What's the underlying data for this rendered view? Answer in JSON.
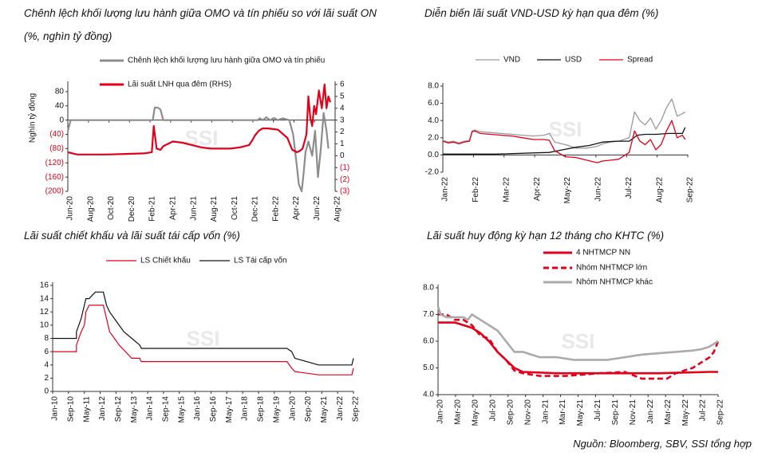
{
  "source": "Nguồn:  Bloomberg, SBV, SSI tổng hợp",
  "watermark": "SSI",
  "chart_data": [
    {
      "id": "c1",
      "type": "line",
      "title": "Chênh lệch khối lượng lưu hành giữa OMO và tín phiếu so với lãi suất ON",
      "subtitle": "(%, nghìn tỷ đồng)",
      "ylabel": "Nghìn tỷ đồng",
      "ylim": [
        -200,
        100
      ],
      "y2lim": [
        -3,
        6
      ],
      "y_ticks": [
        "80",
        "40",
        "0",
        "(40)",
        "(80)",
        "(120)",
        "(160)",
        "(200)"
      ],
      "y_tick_values": [
        80,
        40,
        0,
        -40,
        -80,
        -120,
        -160,
        -200
      ],
      "y2_ticks": [
        "6",
        "5",
        "4",
        "3",
        "2",
        "1",
        "0",
        "(1)",
        "(2)",
        "(3)"
      ],
      "y2_tick_values": [
        6,
        5,
        4,
        3,
        2,
        1,
        0,
        -1,
        -2,
        -3
      ],
      "x_ticks": [
        "Jun-20",
        "Aug-20",
        "Oct-20",
        "Dec-20",
        "Feb-21",
        "Apr-21",
        "Jun-21",
        "Aug-21",
        "Oct-21",
        "Dec-21",
        "Feb-22",
        "Apr-22",
        "Jun-22",
        "Aug-22"
      ],
      "xlim": [
        0,
        28
      ],
      "legend": [
        "Chênh lệch khối lượng lưu hành giữa OMO và tín phiếu",
        "Lãi suất LNH qua đêm (RHS)"
      ],
      "colors": [
        "#8c8c8c",
        "#e2001a"
      ],
      "series": [
        {
          "name": "Chênh lệch khối lượng lưu hành giữa OMO và tín phiếu",
          "axis": "left",
          "x": [
            0,
            0.3,
            0.6,
            3,
            6,
            8.9,
            9.1,
            9.4,
            9.7,
            10,
            12,
            14,
            18,
            19.9,
            20.1,
            20.4,
            20.8,
            21.2,
            21.6,
            22,
            22.5,
            23.2,
            23.6,
            24,
            24.2,
            24.5,
            24.7,
            24.9,
            25.2,
            25.6,
            25.9,
            26.2,
            26.5,
            26.8,
            27.1,
            27.3
          ],
          "y": [
            -30,
            0,
            0,
            0,
            0,
            0,
            35,
            35,
            30,
            0,
            0,
            0,
            0,
            0,
            5,
            0,
            8,
            0,
            6,
            0,
            5,
            0,
            -40,
            -130,
            -180,
            -200,
            -150,
            -90,
            -60,
            -100,
            -30,
            -160,
            -80,
            20,
            -30,
            -80
          ]
        },
        {
          "name": "Lãi suất LNH qua đêm (RHS)",
          "axis": "right",
          "x": [
            0,
            0.5,
            1,
            2,
            4,
            6,
            8,
            8.8,
            9,
            9.3,
            9.7,
            10,
            11,
            12,
            13,
            14,
            15,
            16,
            17,
            18,
            19,
            19.4,
            19.6,
            20,
            20.4,
            21,
            22,
            23,
            23.5,
            24,
            24.3,
            24.6,
            25,
            25.2,
            25.4,
            25.6,
            25.8,
            26,
            26.3,
            26.6,
            26.9,
            27.1,
            27.3,
            27.5
          ],
          "y": [
            0.3,
            0.2,
            0.1,
            0.1,
            0.1,
            0.15,
            0.2,
            0.3,
            2.5,
            0.6,
            0.5,
            0.8,
            1.2,
            1.1,
            0.9,
            0.7,
            0.6,
            0.6,
            0.6,
            0.7,
            0.9,
            1.4,
            1.7,
            2.1,
            2.3,
            2.3,
            2.2,
            1.5,
            0.5,
            0.3,
            0.4,
            0.6,
            1.8,
            5.0,
            3.2,
            2.5,
            4.2,
            3.5,
            5.5,
            4.0,
            6.0,
            4.0,
            5.0,
            4.5
          ]
        }
      ]
    },
    {
      "id": "c2",
      "type": "line",
      "title": "Diễn biến lãi suất VND-USD kỳ hạn qua đêm (%)",
      "ylim": [
        -2,
        8
      ],
      "y_ticks": [
        "8.0",
        "6.0",
        "4.0",
        "2.0",
        "0.0",
        "-2.0"
      ],
      "y_tick_values": [
        8,
        6,
        4,
        2,
        0,
        -2
      ],
      "x_ticks": [
        "Jan-22",
        "Feb-22",
        "Mar-22",
        "Apr-22",
        "May-22",
        "Jun-22",
        "Jul-22",
        "Aug-22",
        "Sep-22"
      ],
      "xlim": [
        0,
        9.2
      ],
      "legend": [
        "VND",
        "USD",
        "Spread"
      ],
      "colors": [
        "#999999",
        "#111111",
        "#e2001a"
      ],
      "series": [
        {
          "name": "VND",
          "x": [
            0,
            0.2,
            0.4,
            0.6,
            0.8,
            1,
            1.1,
            1.2,
            1.4,
            1.8,
            2.2,
            2.6,
            3,
            3.4,
            3.8,
            4,
            4.2,
            4.6,
            5,
            5.4,
            5.8,
            6,
            6.3,
            6.6,
            7,
            7.2,
            7.4,
            7.6,
            7.8,
            8,
            8.2,
            8.4,
            8.6,
            8.8,
            9,
            9.1
          ],
          "y": [
            1.7,
            1.5,
            1.6,
            1.4,
            1.6,
            1.7,
            2.8,
            2.9,
            2.7,
            2.6,
            2.5,
            2.4,
            2.3,
            2.2,
            2.3,
            2.5,
            1.5,
            1.2,
            0.8,
            0.8,
            1.0,
            1.3,
            1.5,
            1.6,
            2.0,
            5.0,
            4.0,
            3.5,
            4.3,
            3.0,
            4.0,
            5.5,
            6.5,
            4.5,
            4.8,
            5.0
          ]
        },
        {
          "name": "USD",
          "x": [
            0,
            2,
            4,
            4.5,
            5,
            5.5,
            6,
            6.5,
            7,
            7.3,
            7.6,
            8,
            8.5,
            9,
            9.1
          ],
          "y": [
            0.1,
            0.1,
            0.3,
            0.6,
            0.9,
            1.1,
            1.5,
            1.6,
            1.6,
            2.3,
            2.4,
            2.4,
            2.5,
            2.5,
            3.2
          ]
        },
        {
          "name": "Spread",
          "x": [
            0,
            0.2,
            0.4,
            0.6,
            0.8,
            1,
            1.1,
            1.2,
            1.4,
            1.8,
            2.2,
            2.6,
            3,
            3.4,
            3.8,
            4,
            4.2,
            4.6,
            5,
            5.4,
            5.8,
            6,
            6.3,
            6.6,
            7,
            7.2,
            7.4,
            7.6,
            7.8,
            8,
            8.2,
            8.4,
            8.6,
            8.8,
            9,
            9.1
          ],
          "y": [
            1.6,
            1.4,
            1.5,
            1.3,
            1.5,
            1.6,
            2.7,
            2.8,
            2.5,
            2.4,
            2.3,
            2.2,
            2.0,
            1.8,
            1.8,
            1.7,
            0.5,
            -0.2,
            -0.3,
            -0.6,
            -0.9,
            -0.7,
            -0.6,
            -0.5,
            0.3,
            2.8,
            1.6,
            1.2,
            1.8,
            0.6,
            1.2,
            2.8,
            4.0,
            2.0,
            2.3,
            1.8
          ]
        }
      ]
    },
    {
      "id": "c3",
      "type": "line",
      "title": "Lãi suất chiết khấu và lãi suất tái cấp vốn (%)",
      "ylim": [
        0,
        16
      ],
      "y_ticks": [
        "16",
        "14",
        "12",
        "10",
        "8",
        "6",
        "4",
        "2",
        "0"
      ],
      "y_tick_values": [
        16,
        14,
        12,
        10,
        8,
        6,
        4,
        2,
        0
      ],
      "x_ticks": [
        "Jan-10",
        "Sep-10",
        "May-11",
        "Jan-12",
        "Sep-12",
        "May-13",
        "Jan-14",
        "Sep-14",
        "May-15",
        "Jan-16",
        "Sep-16",
        "May-17",
        "Jan-18",
        "Sep-18",
        "May-19",
        "Jan-20",
        "Sep-20",
        "May-21",
        "Jan-22",
        "Sep-22"
      ],
      "xlim": [
        0,
        19
      ],
      "legend": [
        "LS Chiết khấu",
        "LS Tái cấp vốn"
      ],
      "colors": [
        "#e2001a",
        "#111111"
      ],
      "series": [
        {
          "name": "LS Chiết khấu",
          "x": [
            0,
            1.5,
            1.5,
            1.8,
            2.0,
            2.1,
            2.3,
            3.2,
            3.4,
            3.6,
            3.9,
            4.2,
            5,
            5.5,
            5.6,
            14.8,
            15.1,
            15.3,
            16.8,
            17,
            18.9,
            19
          ],
          "y": [
            6,
            6,
            7,
            9,
            10,
            12,
            13,
            13,
            11,
            9,
            8,
            7,
            5,
            5,
            4.5,
            4.5,
            3.5,
            3,
            2.5,
            2.5,
            2.5,
            3.5
          ]
        },
        {
          "name": "LS Tái cấp vốn",
          "x": [
            0,
            1.5,
            1.5,
            1.8,
            2.0,
            2.1,
            2.3,
            2.7,
            2.8,
            3.2,
            3.4,
            3.6,
            3.9,
            4.2,
            4.5,
            5,
            5.5,
            5.6,
            14.8,
            15.1,
            15.3,
            16.8,
            17,
            18.9,
            19
          ],
          "y": [
            8,
            8,
            9,
            11,
            13,
            14,
            14,
            15,
            15,
            15,
            13,
            12,
            11,
            10,
            9,
            8,
            7,
            6.5,
            6.5,
            6,
            5,
            4,
            4,
            4,
            5
          ]
        }
      ]
    },
    {
      "id": "c4",
      "type": "line",
      "title": "Lãi suất huy động kỳ hạn 12 tháng cho KHTC (%)",
      "ylim": [
        4,
        8
      ],
      "y_ticks": [
        "8.0",
        "7.0",
        "6.0",
        "5.0",
        "4.0"
      ],
      "y_tick_values": [
        8,
        7,
        6,
        5,
        4
      ],
      "x_ticks": [
        "Jan-20",
        "Mar-20",
        "May-20",
        "Jul-20",
        "Sep-20",
        "Nov-20",
        "Jan-21",
        "Mar-21",
        "May-21",
        "Jul-21",
        "Sep-21",
        "Nov-21",
        "Jan-22",
        "Mar-22",
        "May-22",
        "Jul-22",
        "Sep-22"
      ],
      "xlim": [
        0,
        33
      ],
      "legend": [
        "4 NHTMCP NN",
        "Nhóm NHTMCP lớn",
        "Nhóm NHTMCP khác"
      ],
      "colors": [
        "#e2001a",
        "#e2001a",
        "#aaaaaa"
      ],
      "series": [
        {
          "name": "4 NHTMCP NN",
          "x": [
            0,
            2,
            3,
            4,
            5,
            6,
            7,
            8,
            9,
            10,
            14,
            20,
            26,
            32,
            33
          ],
          "y": [
            6.7,
            6.7,
            6.6,
            6.5,
            6.3,
            6.0,
            5.6,
            5.3,
            5.0,
            4.85,
            4.8,
            4.8,
            4.8,
            4.85,
            4.85
          ]
        },
        {
          "name": "Nhóm NHTMCP lớn",
          "x": [
            0,
            1,
            2,
            3,
            4,
            5,
            6,
            7,
            8,
            9,
            10,
            12,
            15,
            17,
            19,
            22,
            24,
            27,
            28,
            29,
            30,
            31,
            32,
            32.5,
            33
          ],
          "y": [
            7.0,
            7.0,
            6.8,
            6.8,
            6.6,
            6.2,
            6.1,
            5.6,
            5.3,
            4.9,
            4.8,
            4.7,
            4.7,
            4.75,
            4.8,
            4.85,
            4.6,
            4.6,
            4.8,
            4.9,
            5.0,
            5.2,
            5.4,
            5.6,
            6.0
          ]
        },
        {
          "name": "Nhóm NHTMCP khác",
          "x": [
            0,
            0.3,
            1,
            2,
            3,
            3.5,
            4,
            5,
            6,
            7,
            8,
            9,
            10,
            11,
            12,
            14,
            16,
            18,
            20,
            22,
            24,
            26,
            28,
            30,
            31,
            32,
            32.5,
            33
          ],
          "y": [
            7.3,
            7.0,
            6.9,
            6.9,
            6.9,
            6.8,
            7.0,
            6.8,
            6.6,
            6.4,
            6.0,
            5.6,
            5.6,
            5.5,
            5.4,
            5.4,
            5.3,
            5.3,
            5.3,
            5.4,
            5.5,
            5.55,
            5.6,
            5.65,
            5.7,
            5.8,
            5.9,
            6.0
          ]
        }
      ]
    }
  ]
}
